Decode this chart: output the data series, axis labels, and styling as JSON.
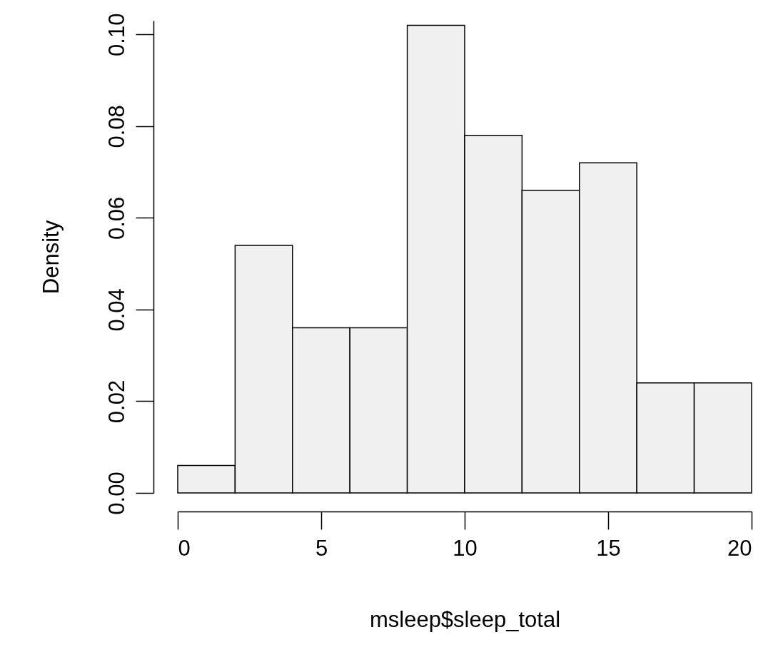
{
  "chart_data": {
    "type": "histogram",
    "xlabel": "msleep$sleep_total",
    "ylabel": "Density",
    "bins": [
      0,
      2,
      4,
      6,
      8,
      10,
      12,
      14,
      16,
      18,
      20
    ],
    "values": [
      0.006,
      0.054,
      0.036,
      0.036,
      0.102,
      0.078,
      0.066,
      0.072,
      0.024,
      0.024
    ],
    "color": "#f0f0f0",
    "xlim": [
      0,
      20
    ],
    "xticks": [
      0,
      5,
      10,
      15,
      20
    ],
    "ylim": [
      0,
      0.103
    ],
    "yticks": [
      {
        "value": 0,
        "label": "0.00"
      },
      {
        "value": 0.02,
        "label": "0.02"
      },
      {
        "value": 0.04,
        "label": "0.04"
      },
      {
        "value": 0.06,
        "label": "0.06"
      },
      {
        "value": 0.08,
        "label": "0.08"
      },
      {
        "value": 0.1,
        "label": "0.10"
      }
    ]
  }
}
